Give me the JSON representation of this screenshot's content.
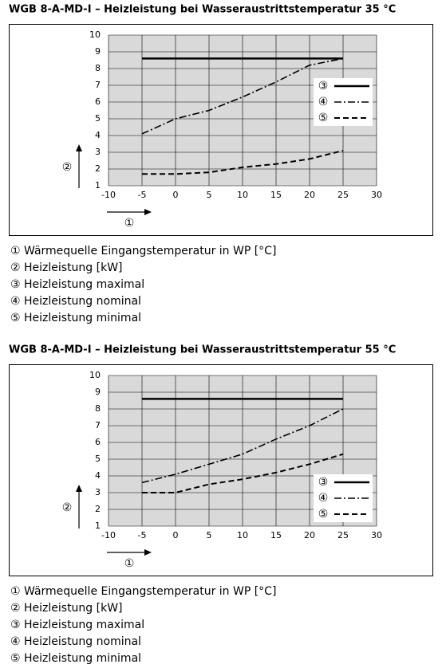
{
  "chart_data": [
    {
      "type": "line",
      "title": "WGB 8-A-MD-I – Heizleistung bei Wasseraustrittstemperatur 35 °C",
      "x_label": "①",
      "y_label": "②",
      "x": [
        -5,
        0,
        5,
        10,
        15,
        20,
        25
      ],
      "series": [
        {
          "name": "③",
          "color": "#000000",
          "linestyle": "solid",
          "values": [
            8.6,
            8.6,
            8.6,
            8.6,
            8.6,
            8.6,
            8.6
          ]
        },
        {
          "name": "④",
          "color": "#000000",
          "linestyle": "dashdot",
          "values": [
            4.1,
            5.0,
            5.5,
            6.3,
            7.2,
            8.2,
            8.6
          ]
        },
        {
          "name": "⑤",
          "color": "#000000",
          "linestyle": "dashed",
          "values": [
            1.7,
            1.7,
            1.8,
            2.1,
            2.3,
            2.6,
            3.1
          ]
        }
      ],
      "xlim": [
        -10,
        30
      ],
      "xticks": [
        -10,
        -5,
        0,
        5,
        10,
        15,
        20,
        25,
        30
      ],
      "ylim": [
        1,
        10
      ],
      "yticks": [
        1,
        2,
        3,
        4,
        5,
        6,
        7,
        8,
        9,
        10
      ],
      "grid": true,
      "legend_position": "center right",
      "notes": [
        "① Wärmequelle Eingangstemperatur in WP [°C]",
        "② Heizleistung [kW]",
        "③ Heizleistung maximal",
        "④ Heizleistung nominal",
        "⑤ Heizleistung minimal"
      ]
    },
    {
      "type": "line",
      "title": "WGB 8-A-MD-I – Heizleistung bei Wasseraustrittstemperatur 55 °C",
      "x_label": "①",
      "y_label": "②",
      "x": [
        -5,
        0,
        5,
        10,
        15,
        20,
        25
      ],
      "series": [
        {
          "name": "③",
          "color": "#000000",
          "linestyle": "solid",
          "values": [
            8.6,
            8.6,
            8.6,
            8.6,
            8.6,
            8.6,
            8.6
          ]
        },
        {
          "name": "④",
          "color": "#000000",
          "linestyle": "dashdot",
          "values": [
            3.6,
            4.1,
            4.7,
            5.3,
            6.2,
            7.0,
            8.0
          ]
        },
        {
          "name": "⑤",
          "color": "#000000",
          "linestyle": "dashed",
          "values": [
            3.0,
            3.0,
            3.5,
            3.8,
            4.2,
            4.7,
            5.3
          ]
        }
      ],
      "xlim": [
        -10,
        30
      ],
      "xticks": [
        -10,
        -5,
        0,
        5,
        10,
        15,
        20,
        25,
        30
      ],
      "ylim": [
        1,
        10
      ],
      "yticks": [
        1,
        2,
        3,
        4,
        5,
        6,
        7,
        8,
        9,
        10
      ],
      "grid": true,
      "legend_position": "lower right",
      "notes": [
        "① Wärmequelle Eingangstemperatur in WP [°C]",
        "② Heizleistung [kW]",
        "③ Heizleistung maximal",
        "④ Heizleistung nominal",
        "⑤ Heizleistung minimal"
      ]
    }
  ]
}
